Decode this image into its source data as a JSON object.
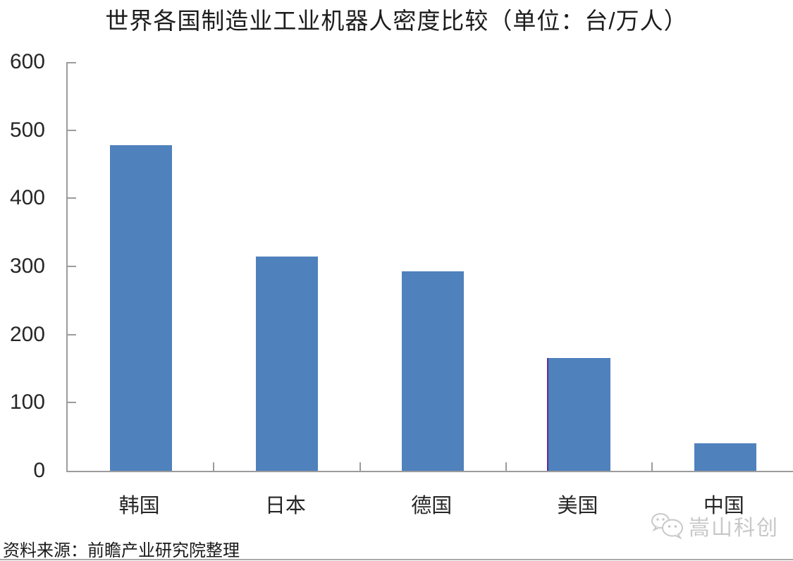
{
  "source_note": "资料来源：前瞻产业研究院整理",
  "watermark": {
    "icon": "wechat-icon",
    "label": "嵩山科创"
  },
  "chart_data": {
    "type": "bar",
    "title": "世界各国制造业工业机器人密度比较（单位：台/万人）",
    "unit": "台/万人",
    "categories": [
      "韩国",
      "日本",
      "德国",
      "美国",
      "中国"
    ],
    "values": [
      478,
      314,
      293,
      166,
      40
    ],
    "xlabel": "",
    "ylabel": "",
    "ylim": [
      0,
      600
    ],
    "yticks": [
      0,
      100,
      200,
      300,
      400,
      500,
      600
    ],
    "grid": false,
    "legend": "none",
    "bar_color": "#4f81bd",
    "axis_color": "#9c9c9c",
    "highlight": {
      "category": "美国",
      "left_edge_color": "#5c2e91"
    }
  }
}
